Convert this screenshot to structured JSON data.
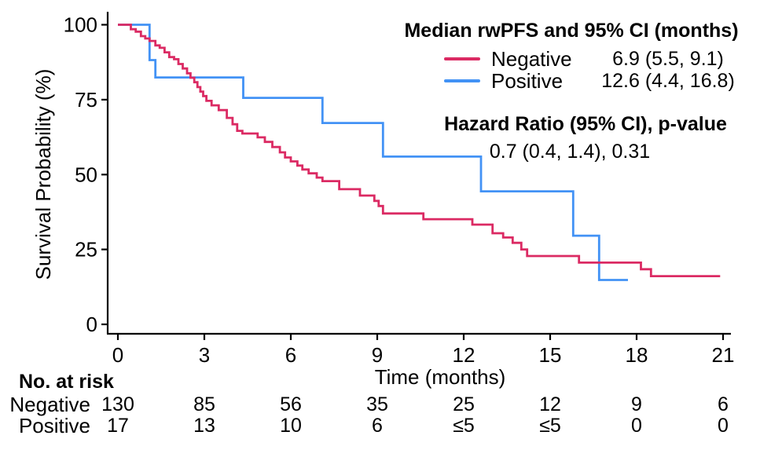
{
  "chart_data": {
    "type": "line",
    "chart_style": "kaplan_meier_step",
    "title": "",
    "xlabel": "Time (months)",
    "ylabel": "Survival Probability (%)",
    "xlim": [
      0,
      21
    ],
    "ylim": [
      0,
      100
    ],
    "x_ticks": [
      0,
      3,
      6,
      9,
      12,
      15,
      18,
      21
    ],
    "y_ticks": [
      0,
      25,
      50,
      75,
      100
    ],
    "grid": false,
    "legend_position": "top-right",
    "legend": {
      "header": "Median rwPFS and 95% CI (months)",
      "hr_header": "Hazard Ratio (95% CI), p-value",
      "hr_value": "0.7 (0.4, 1.4), 0.31"
    },
    "series": [
      {
        "name": "Positive",
        "color": "#4292F5",
        "median_ci": "12.6 (4.4, 16.8)",
        "points": [
          [
            0,
            100
          ],
          [
            1.1,
            88.2
          ],
          [
            1.3,
            82.4
          ],
          [
            4.35,
            75.6
          ],
          [
            7.1,
            67.2
          ],
          [
            9.2,
            56.0
          ],
          [
            12.6,
            44.4
          ],
          [
            15.8,
            29.6
          ],
          [
            16.7,
            14.8
          ],
          [
            17.7,
            14.8
          ]
        ]
      },
      {
        "name": "Negative",
        "color": "#DB2A63",
        "median_ci": "6.9 (5.5, 9.1)",
        "points": [
          [
            0,
            100
          ],
          [
            0.45,
            98.5
          ],
          [
            0.62,
            97.7
          ],
          [
            0.8,
            96.2
          ],
          [
            0.95,
            95.4
          ],
          [
            1.1,
            94.6
          ],
          [
            1.3,
            93.1
          ],
          [
            1.45,
            92.3
          ],
          [
            1.62,
            90.8
          ],
          [
            1.78,
            89.2
          ],
          [
            1.95,
            88.5
          ],
          [
            2.1,
            86.9
          ],
          [
            2.25,
            85.4
          ],
          [
            2.4,
            83.8
          ],
          [
            2.52,
            82.3
          ],
          [
            2.65,
            80.8
          ],
          [
            2.76,
            79.2
          ],
          [
            2.86,
            77.7
          ],
          [
            2.96,
            76.2
          ],
          [
            3.07,
            74.6
          ],
          [
            3.25,
            73.1
          ],
          [
            3.5,
            71.5
          ],
          [
            3.78,
            68.9
          ],
          [
            3.98,
            66.8
          ],
          [
            4.14,
            64.6
          ],
          [
            4.32,
            63.7
          ],
          [
            4.85,
            62.4
          ],
          [
            5.1,
            60.9
          ],
          [
            5.36,
            59.2
          ],
          [
            5.62,
            57.4
          ],
          [
            5.8,
            55.7
          ],
          [
            6.0,
            54.4
          ],
          [
            6.23,
            53.0
          ],
          [
            6.4,
            51.7
          ],
          [
            6.62,
            50.4
          ],
          [
            6.9,
            49.0
          ],
          [
            7.1,
            47.8
          ],
          [
            7.68,
            45.1
          ],
          [
            8.4,
            43.0
          ],
          [
            8.9,
            41.2
          ],
          [
            9.05,
            39.5
          ],
          [
            9.2,
            37.0
          ],
          [
            10.6,
            35.1
          ],
          [
            12.3,
            33.3
          ],
          [
            13.0,
            30.4
          ],
          [
            13.37,
            29.0
          ],
          [
            13.7,
            27.2
          ],
          [
            14.0,
            25.0
          ],
          [
            14.2,
            22.8
          ],
          [
            16.0,
            20.6
          ],
          [
            18.15,
            18.4
          ],
          [
            18.5,
            16.1
          ],
          [
            20.9,
            16.1
          ]
        ]
      }
    ],
    "risk_table": {
      "title": "No. at risk",
      "time_points": [
        0,
        3,
        6,
        9,
        12,
        15,
        18,
        21
      ],
      "rows": [
        {
          "name": "Negative",
          "values": [
            "130",
            "85",
            "56",
            "35",
            "25",
            "12",
            "9",
            "6"
          ]
        },
        {
          "name": "Positive",
          "values": [
            "17",
            "13",
            "10",
            "6",
            "≤5",
            "≤5",
            "0",
            "0"
          ]
        }
      ]
    }
  }
}
